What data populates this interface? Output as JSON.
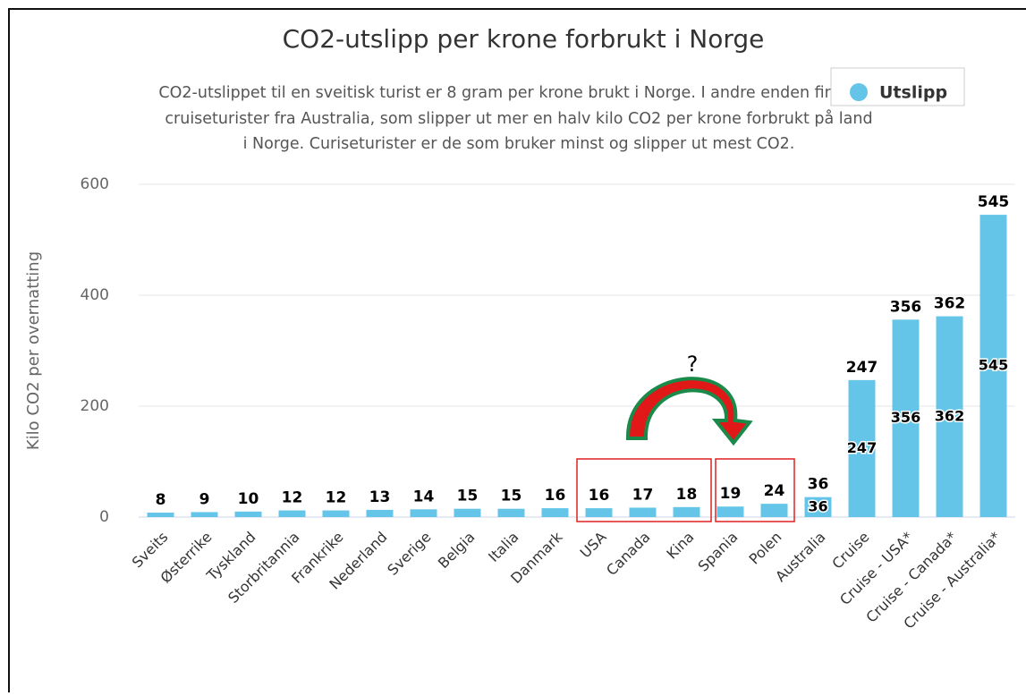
{
  "chart_data": {
    "type": "bar",
    "title": "CO2-utslipp per krone forbrukt i Norge",
    "subtitle": [
      "CO2-utslippet til en sveitisk turist er 8 gram per krone brukt i Norge. I andre enden finner vi",
      "cruiseturister fra Australia, som slipper ut mer en halv kilo CO2 per krone forbrukt på land",
      "i Norge. Curiseturister er de som bruker minst og slipper ut mest CO2."
    ],
    "y_label": "Kilo CO2 per overnatting",
    "annotation": "?",
    "categories": [
      "Sveits",
      "Østerrike",
      "Tyskland",
      "Storbritannia",
      "Frankrike",
      "Nederland",
      "Sverige",
      "Belgia",
      "Italia",
      "Danmark",
      "USA",
      "Canada",
      "Kina",
      "Spania",
      "Polen",
      "Australia",
      "Cruise",
      "Cruise - USA*",
      "Cruise - Canada*",
      "Cruise - Australia*"
    ],
    "series": [
      {
        "name": "Utslipp",
        "color": "#64c5e8",
        "values": [
          8,
          9,
          10,
          12,
          12,
          13,
          14,
          15,
          15,
          16,
          16,
          17,
          18,
          19,
          24,
          36,
          247,
          356,
          362,
          545
        ]
      }
    ],
    "ylim": [
      0,
      600
    ],
    "yticks": [
      0,
      200,
      400,
      600
    ],
    "grid": true,
    "legend": "top-right"
  }
}
